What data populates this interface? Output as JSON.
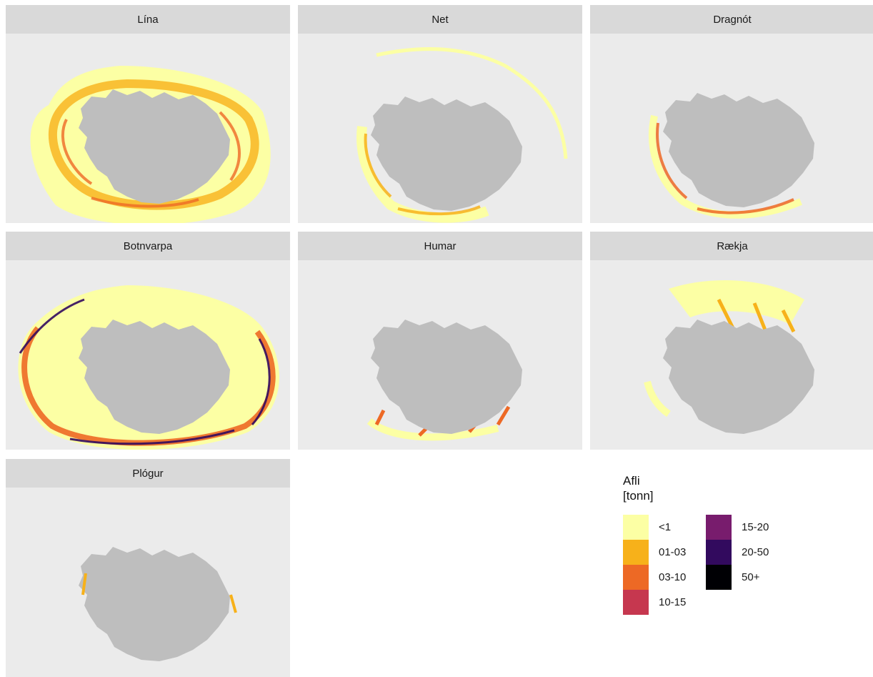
{
  "panels": [
    {
      "title": "Lína"
    },
    {
      "title": "Net"
    },
    {
      "title": "Dragnót"
    },
    {
      "title": "Botnvarpa"
    },
    {
      "title": "Humar"
    },
    {
      "title": "Rækja"
    },
    {
      "title": "Plógur"
    }
  ],
  "colors": {
    "panel_background": "#ebebeb",
    "strip_background": "#d9d9d9",
    "land": "#bebebe"
  },
  "legend": {
    "title_line1": "Afli",
    "title_line2": "[tonn]",
    "items": [
      {
        "label": "<1",
        "color": "#fcffa4"
      },
      {
        "label": "01-03",
        "color": "#f7b11a"
      },
      {
        "label": "03-10",
        "color": "#ed6925"
      },
      {
        "label": "10-15",
        "color": "#c6374f"
      },
      {
        "label": "15-20",
        "color": "#781c6d"
      },
      {
        "label": "20-50",
        "color": "#320a5e"
      },
      {
        "label": "50+",
        "color": "#000004"
      }
    ]
  }
}
